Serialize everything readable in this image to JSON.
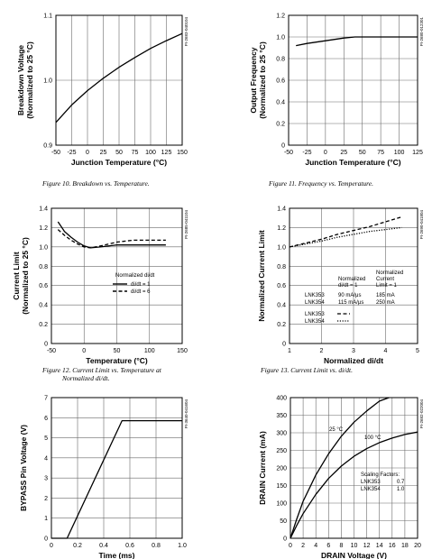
{
  "figures": [
    {
      "id": "fig10",
      "caption": "Figure 10. Breakdown vs. Temperature.",
      "code": "PI-2683-040104",
      "chart_data": {
        "type": "line",
        "title": "",
        "xlabel": "Junction Temperature (°C)",
        "ylabel": [
          "Breakdown Voltage",
          "(Normalized to 25 °C)"
        ],
        "xlim": [
          -50,
          150
        ],
        "ylim": [
          0.9,
          1.1
        ],
        "xticks": [
          -50,
          -25,
          0,
          25,
          50,
          75,
          100,
          125,
          150
        ],
        "yticks": [
          0.9,
          1.0,
          1.1
        ],
        "ytick_labels": [
          "0.9",
          "1.0",
          "1.1"
        ],
        "grid": true,
        "series": [
          {
            "style": "solid",
            "x": [
              -50,
              -25,
              0,
              25,
              50,
              75,
              100,
              125,
              150
            ],
            "y": [
              0.935,
              0.962,
              0.984,
              1.003,
              1.02,
              1.035,
              1.049,
              1.061,
              1.072
            ]
          }
        ]
      }
    },
    {
      "id": "fig11",
      "caption": "Figure 11. Frequency vs. Temperature.",
      "code": "PI-2680-012301",
      "chart_data": {
        "type": "line",
        "title": "",
        "xlabel": "Junction Temperature (°C)",
        "ylabel": [
          "Output Frequency",
          "(Normalized to 25 °C)"
        ],
        "xlim": [
          -50,
          125
        ],
        "ylim": [
          0,
          1.2
        ],
        "xticks": [
          -50,
          -25,
          0,
          25,
          50,
          75,
          100,
          125
        ],
        "yticks": [
          0,
          0.2,
          0.4,
          0.6,
          0.8,
          1.0,
          1.2
        ],
        "ytick_labels": [
          "0",
          "0.2",
          "0.4",
          "0.6",
          "0.8",
          "1.0",
          "1.2"
        ],
        "grid": true,
        "series": [
          {
            "style": "solid",
            "x": [
              -40,
              -25,
              0,
              25,
              40,
              60,
              80,
              100,
              125
            ],
            "y": [
              0.92,
              0.94,
              0.965,
              0.99,
              1.0,
              1.0,
              1.0,
              1.0,
              1.0
            ]
          }
        ]
      }
    },
    {
      "id": "fig12",
      "caption": [
        "Figure 12. Current Limit vs. Temperature at",
        "Normalized di/dt."
      ],
      "code": "PI-2685-041104",
      "chart_data": {
        "type": "line",
        "title": "",
        "xlabel": "Temperature (°C)",
        "ylabel": [
          "Current Limit",
          "(Normalized to 25 °C)"
        ],
        "xlim": [
          -50,
          150
        ],
        "ylim": [
          0,
          1.4
        ],
        "xticks": [
          -50,
          0,
          50,
          100,
          150
        ],
        "yticks": [
          0,
          0.2,
          0.4,
          0.6,
          0.8,
          1.0,
          1.2,
          1.4
        ],
        "ytick_labels": [
          "0",
          "0.2",
          "0.4",
          "0.6",
          "0.8",
          "1.0",
          "1.2",
          "1.4"
        ],
        "grid": true,
        "legend_title": "Normalized di/dt",
        "series": [
          {
            "name": "di/dt = 1",
            "style": "solid",
            "x": [
              -40,
              -30,
              -20,
              -10,
              0,
              10,
              25,
              50,
              75,
              100,
              125
            ],
            "y": [
              1.26,
              1.16,
              1.1,
              1.05,
              1.01,
              0.99,
              1.0,
              1.02,
              1.02,
              1.02,
              1.02
            ]
          },
          {
            "name": "di/dt = 6",
            "style": "dashed",
            "x": [
              -40,
              -30,
              -20,
              -10,
              0,
              10,
              25,
              50,
              75,
              100,
              125
            ],
            "y": [
              1.18,
              1.12,
              1.07,
              1.03,
              1.0,
              0.99,
              1.01,
              1.05,
              1.07,
              1.07,
              1.07
            ]
          }
        ]
      }
    },
    {
      "id": "fig13",
      "caption": "Figure 13. Current Limit vs. di/dt.",
      "code": "PI-2690-041804",
      "chart_data": {
        "type": "line",
        "title": "",
        "xlabel": "Normalized di/dt",
        "ylabel": [
          "Normalized Current Limit"
        ],
        "xlim": [
          1,
          5
        ],
        "ylim": [
          0,
          1.4
        ],
        "xticks": [
          1,
          2,
          3,
          4,
          5
        ],
        "yticks": [
          0,
          0.2,
          0.4,
          0.6,
          0.8,
          1.0,
          1.2,
          1.4
        ],
        "ytick_labels": [
          "0",
          "0.2",
          "0.4",
          "0.6",
          "0.8",
          "1.0",
          "1.2",
          "1.4"
        ],
        "grid": true,
        "table": {
          "headers": [
            "",
            "Normalized di/dt = 1",
            "Normalized Current Limit = 1"
          ],
          "rows": [
            [
              "LNK353",
              "90 mA/μs",
              "185 mA"
            ],
            [
              "LNK354",
              "115 mA/μs",
              "250 mA"
            ]
          ]
        },
        "series": [
          {
            "name": "LNK353",
            "style": "dashed",
            "x": [
              1,
              1.5,
              2,
              2.5,
              3,
              3.5,
              4,
              4.5
            ],
            "y": [
              1.0,
              1.04,
              1.08,
              1.13,
              1.17,
              1.21,
              1.26,
              1.31
            ]
          },
          {
            "name": "LNK354",
            "style": "dotted",
            "x": [
              1,
              1.5,
              2,
              2.5,
              3,
              3.5,
              4,
              4.5
            ],
            "y": [
              1.0,
              1.03,
              1.06,
              1.1,
              1.13,
              1.16,
              1.18,
              1.2
            ]
          }
        ]
      }
    },
    {
      "id": "fig14",
      "caption": "",
      "code": "PI-3640-041604",
      "chart_data": {
        "type": "line",
        "title": "",
        "xlabel": "Time (ms)",
        "ylabel": [
          "BYPASS Pin Voltage (V)"
        ],
        "xlim": [
          0,
          1.0
        ],
        "ylim": [
          0,
          7
        ],
        "xticks": [
          0,
          0.2,
          0.4,
          0.6,
          0.8,
          1.0
        ],
        "xtick_labels": [
          "0",
          "0.2",
          "0.4",
          "0.6",
          "0.8",
          "1.0"
        ],
        "yticks": [
          0,
          1,
          2,
          3,
          4,
          5,
          6,
          7
        ],
        "ytick_labels": [
          "0",
          "1",
          "2",
          "3",
          "4",
          "5",
          "6",
          "7"
        ],
        "grid": true,
        "series": [
          {
            "style": "solid",
            "x": [
              0,
              0.12,
              0.54,
              1.0
            ],
            "y": [
              0,
              0,
              5.85,
              5.85
            ]
          }
        ]
      }
    },
    {
      "id": "fig15",
      "caption": "",
      "code": "PI-2682-022004",
      "chart_data": {
        "type": "line",
        "title": "",
        "xlabel": "DRAIN Voltage (V)",
        "ylabel": [
          "DRAIN Current (mA)"
        ],
        "xlim": [
          0,
          20
        ],
        "ylim": [
          0,
          400
        ],
        "xticks": [
          0,
          2,
          4,
          6,
          8,
          10,
          12,
          14,
          16,
          18,
          20
        ],
        "yticks": [
          0,
          50,
          100,
          150,
          200,
          250,
          300,
          350,
          400
        ],
        "ytick_labels": [
          "0",
          "50",
          "100",
          "150",
          "200",
          "250",
          "300",
          "350",
          "400"
        ],
        "grid": true,
        "scaling_title": "Scaling Factors:",
        "scaling": [
          [
            "LNK353",
            "0.7"
          ],
          [
            "LNK354",
            "1.0"
          ]
        ],
        "series": [
          {
            "name": "25 °C",
            "style": "solid",
            "x": [
              0,
              1,
              2,
              4,
              6,
              8,
              10,
              12,
              14,
              15.5
            ],
            "y": [
              0,
              55,
              105,
              180,
              240,
              290,
              330,
              362,
              390,
              400
            ]
          },
          {
            "name": "100 °C",
            "style": "solid",
            "x": [
              0,
              1,
              2,
              4,
              6,
              8,
              10,
              12,
              14,
              16,
              18,
              20
            ],
            "y": [
              0,
              37,
              70,
              125,
              170,
              205,
              233,
              255,
              272,
              285,
              295,
              302
            ]
          }
        ]
      }
    }
  ]
}
